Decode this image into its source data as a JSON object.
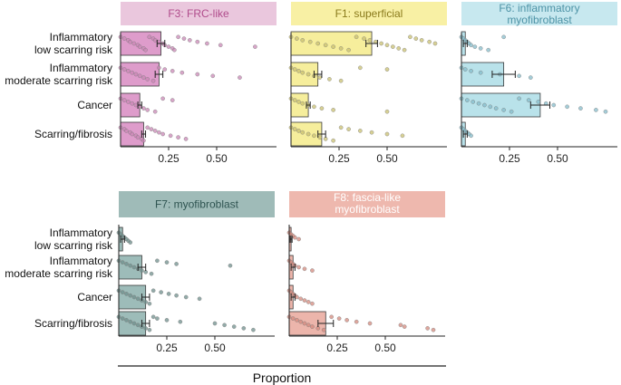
{
  "x_label": "Proportion",
  "row_labels": [
    [
      "Inflammatory",
      "low scarring risk"
    ],
    [
      "Inflammatory",
      "moderate scarring risk"
    ],
    [
      "Cancer"
    ],
    [
      "Scarring/fibrosis"
    ]
  ],
  "x_tick_labels": [
    "0.25",
    "0.50"
  ],
  "chart_data": {
    "type": "bar",
    "orientation": "horizontal",
    "xlabel": "Proportion",
    "xlim": [
      0,
      0.75
    ],
    "xticks": [
      0.25,
      0.5
    ],
    "categories": [
      "Inflammatory low scarring risk",
      "Inflammatory moderate scarring risk",
      "Cancer",
      "Scarring/fibrosis"
    ],
    "panels": [
      {
        "title": [
          "F3: FRC-like"
        ],
        "header_color": "#eac7dd",
        "title_color": "#b04c8c",
        "bar_color": "#de9ccb",
        "dot_color": "#c987b5",
        "values": [
          0.21,
          0.2,
          0.1,
          0.12
        ],
        "errors": [
          0.02,
          0.02,
          0.01,
          0.01
        ],
        "points": [
          [
            0.0,
            0.02,
            0.04,
            0.05,
            0.07,
            0.09,
            0.1,
            0.12,
            0.13,
            0.15,
            0.17,
            0.18,
            0.2,
            0.22,
            0.23,
            0.25,
            0.27,
            0.28,
            0.3,
            0.33,
            0.36,
            0.4,
            0.45,
            0.52,
            0.7
          ],
          [
            0.0,
            0.02,
            0.04,
            0.06,
            0.08,
            0.1,
            0.12,
            0.14,
            0.17,
            0.2,
            0.23,
            0.27,
            0.32,
            0.4,
            0.48,
            0.62
          ],
          [
            0.0,
            0.02,
            0.04,
            0.06,
            0.08,
            0.1,
            0.12,
            0.14,
            0.18,
            0.22,
            0.27
          ],
          [
            0.0,
            0.02,
            0.03,
            0.05,
            0.06,
            0.08,
            0.09,
            0.11,
            0.12,
            0.14,
            0.16,
            0.18,
            0.2,
            0.22,
            0.26,
            0.3,
            0.34
          ]
        ]
      },
      {
        "title": [
          "F1: superficial"
        ],
        "header_color": "#f8f0a4",
        "title_color": "#8a7a1c",
        "bar_color": "#f6ee9c",
        "dot_color": "#c9c070",
        "values": [
          0.42,
          0.14,
          0.09,
          0.16
        ],
        "errors": [
          0.03,
          0.02,
          0.01,
          0.02
        ],
        "points": [
          [
            0.0,
            0.03,
            0.06,
            0.1,
            0.14,
            0.18,
            0.22,
            0.26,
            0.3,
            0.34,
            0.38,
            0.41,
            0.44,
            0.47,
            0.5,
            0.53,
            0.56,
            0.59,
            0.62,
            0.65,
            0.68,
            0.72,
            0.75
          ],
          [
            0.0,
            0.02,
            0.04,
            0.06,
            0.09,
            0.12,
            0.15,
            0.2,
            0.26,
            0.36,
            0.5
          ],
          [
            0.0,
            0.02,
            0.04,
            0.06,
            0.09,
            0.12,
            0.16,
            0.22,
            0.5
          ],
          [
            0.0,
            0.02,
            0.04,
            0.06,
            0.09,
            0.12,
            0.15,
            0.18,
            0.22,
            0.26,
            0.3,
            0.36,
            0.42,
            0.5,
            0.58
          ]
        ]
      },
      {
        "title": [
          "F6: inflammatory",
          "myofibroblast"
        ],
        "header_color": "#c7e8ef",
        "title_color": "#4d93a6",
        "bar_color": "#b9e2ea",
        "dot_color": "#86bccb",
        "values": [
          0.02,
          0.22,
          0.41,
          0.02
        ],
        "errors": [
          0.01,
          0.06,
          0.05,
          0.01
        ],
        "points": [
          [
            0.0,
            0.01,
            0.02,
            0.03,
            0.04,
            0.05,
            0.07,
            0.1,
            0.14,
            0.22
          ],
          [
            0.0,
            0.02,
            0.05,
            0.1,
            0.2,
            0.3,
            0.36
          ],
          [
            0.0,
            0.03,
            0.06,
            0.09,
            0.12,
            0.15,
            0.18,
            0.22,
            0.26,
            0.3,
            0.35,
            0.4,
            0.44,
            0.48,
            0.55,
            0.62,
            0.7,
            0.75
          ],
          [
            0.0,
            0.01,
            0.02,
            0.03,
            0.04,
            0.05
          ]
        ]
      },
      {
        "title": [
          "F7: myofibroblast"
        ],
        "header_color": "#9fbbb8",
        "title_color": "#2e5350",
        "bar_color": "#9dbcb9",
        "dot_color": "#6f8f8c",
        "values": [
          0.02,
          0.12,
          0.14,
          0.14
        ],
        "errors": [
          0.01,
          0.02,
          0.02,
          0.02
        ],
        "points": [
          [
            0.0,
            0.01,
            0.02,
            0.03,
            0.04,
            0.05,
            0.06
          ],
          [
            0.0,
            0.02,
            0.04,
            0.06,
            0.08,
            0.1,
            0.12,
            0.14,
            0.17,
            0.2,
            0.25,
            0.3,
            0.58
          ],
          [
            0.0,
            0.02,
            0.04,
            0.06,
            0.08,
            0.1,
            0.12,
            0.14,
            0.16,
            0.18,
            0.22,
            0.26,
            0.3,
            0.35,
            0.42
          ],
          [
            0.0,
            0.02,
            0.04,
            0.06,
            0.08,
            0.1,
            0.12,
            0.14,
            0.16,
            0.18,
            0.2,
            0.25,
            0.32,
            0.5,
            0.55,
            0.6,
            0.65,
            0.7
          ]
        ]
      },
      {
        "title": [
          "F8: fascia-like",
          "myofibroblast"
        ],
        "header_color": "#eeb8ae",
        "title_color": "#ffffff",
        "bar_color": "#ecb5ab",
        "dot_color": "#d48a7e",
        "values": [
          0.01,
          0.02,
          0.02,
          0.19
        ],
        "errors": [
          0.005,
          0.01,
          0.01,
          0.04
        ],
        "points": [
          [
            0.0,
            0.01,
            0.02,
            0.03,
            0.05
          ],
          [
            0.0,
            0.01,
            0.02,
            0.03,
            0.05,
            0.08,
            0.12
          ],
          [
            0.0,
            0.01,
            0.02,
            0.03,
            0.04,
            0.06,
            0.08,
            0.1,
            0.12
          ],
          [
            0.0,
            0.02,
            0.04,
            0.06,
            0.08,
            0.1,
            0.12,
            0.15,
            0.18,
            0.22,
            0.26,
            0.3,
            0.35,
            0.42,
            0.58,
            0.6,
            0.72,
            0.75
          ]
        ]
      }
    ]
  }
}
